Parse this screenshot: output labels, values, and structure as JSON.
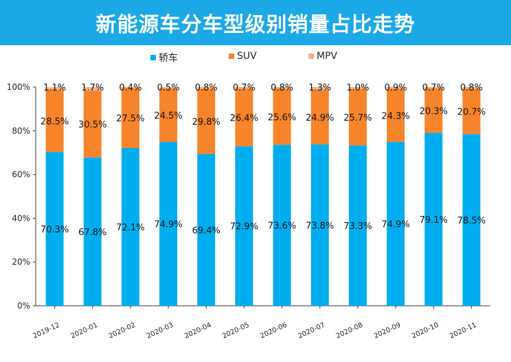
{
  "title": "新能源车分车型级别销量占比走势",
  "chart_data": {
    "type": "bar",
    "stacked": true,
    "categories": [
      "2019-12",
      "2020-01",
      "2020-02",
      "2020-03",
      "2020-04",
      "2020-05",
      "2020-06",
      "2020-07",
      "2020-08",
      "2020-09",
      "2020-10",
      "2020-11"
    ],
    "series": [
      {
        "name": "轿车",
        "color": "#00aeef",
        "values": [
          70.3,
          67.8,
          72.1,
          74.9,
          69.4,
          72.9,
          73.6,
          73.8,
          73.3,
          74.9,
          79.1,
          78.5
        ],
        "labels": [
          "70.3%",
          "67.8%",
          "72.1%",
          "74.9%",
          "69.4%",
          "72.9%",
          "73.6%",
          "73.8%",
          "73.3%",
          "74.9%",
          "79.1%",
          "78.5%"
        ]
      },
      {
        "name": "SUV",
        "color": "#f5842b",
        "values": [
          28.5,
          30.5,
          27.5,
          24.5,
          29.8,
          26.4,
          25.6,
          24.9,
          25.7,
          24.3,
          20.3,
          20.7
        ],
        "labels": [
          "28.5%",
          "30.5%",
          "27.5%",
          "24.5%",
          "29.8%",
          "26.4%",
          "25.6%",
          "24.9%",
          "25.7%",
          "24.3%",
          "20.3%",
          "20.7%"
        ]
      },
      {
        "name": "MPV",
        "color": "#f2b183",
        "values": [
          1.1,
          1.7,
          0.4,
          0.5,
          0.8,
          0.7,
          0.8,
          1.3,
          1.0,
          0.9,
          0.7,
          0.8
        ],
        "labels": [
          "1.1%",
          "1.7%",
          "0.4%",
          "0.5%",
          "0.8%",
          "0.7%",
          "0.8%",
          "1.3%",
          "1.0%",
          "0.9%",
          "0.7%",
          "0.8%"
        ]
      }
    ],
    "ylim": [
      0,
      100
    ],
    "yticks": [
      "0%",
      "20%",
      "40%",
      "60%",
      "80%",
      "100%"
    ],
    "legend_position": "top",
    "grid": false
  }
}
